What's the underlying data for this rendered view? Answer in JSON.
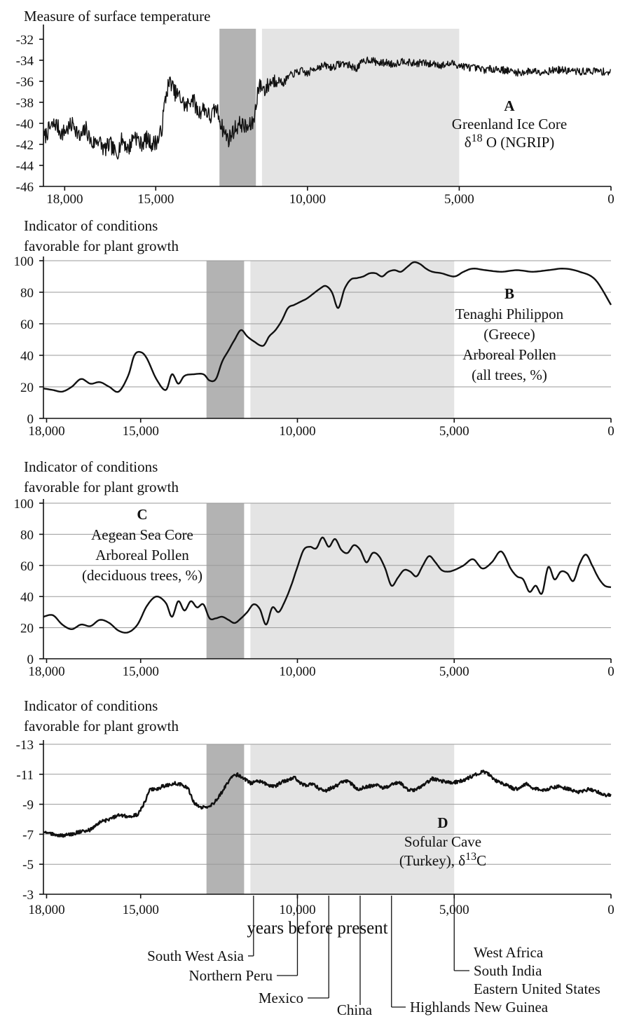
{
  "x_axis_label": "years before present",
  "chart_data": [
    {
      "id": "A",
      "type": "line",
      "ylabel": "Measure of surface temperature",
      "ylim": [
        -46,
        -31
      ],
      "yticks": [
        -46,
        -44,
        -42,
        -40,
        -38,
        -36,
        -34,
        -32
      ],
      "ytick_labels": [
        "-46",
        "-44",
        "-42",
        "-40",
        "-38",
        "-36",
        "-34",
        "-32"
      ],
      "xlim": [
        18700,
        0
      ],
      "xticks": [
        18000,
        15000,
        10000,
        5000,
        0
      ],
      "xtick_labels": [
        "18,000",
        "15,000",
        "10,000",
        "5,000",
        "0"
      ],
      "grid": false,
      "noisy": true,
      "annotation": {
        "letter": "A",
        "lines": [
          "Greenland Ice Core",
          "δ18 O (NGRIP)"
        ],
        "segments": [
          [
            "Greenland Ice Core"
          ],
          [
            "δ",
            "18",
            " O (NGRIP)"
          ]
        ]
      },
      "x": [
        18700,
        18500,
        18300,
        18100,
        17900,
        17700,
        17500,
        17300,
        17100,
        16900,
        16700,
        16500,
        16300,
        16100,
        15900,
        15700,
        15500,
        15300,
        15100,
        14900,
        14800,
        14700,
        14600,
        14500,
        14400,
        14200,
        14000,
        13800,
        13600,
        13400,
        13200,
        13000,
        12900,
        12800,
        12600,
        12400,
        12200,
        12000,
        11800,
        11700,
        11650,
        11600,
        11500,
        11400,
        11200,
        11000,
        10800,
        10600,
        10400,
        10200,
        10000,
        9800,
        9600,
        9400,
        9200,
        9000,
        8800,
        8600,
        8400,
        8200,
        8000,
        7800,
        7600,
        7400,
        7200,
        7000,
        6800,
        6600,
        6400,
        6200,
        6000,
        5800,
        5600,
        5400,
        5200,
        5000,
        4600,
        4200,
        3800,
        3400,
        3000,
        2600,
        2200,
        1800,
        1400,
        1000,
        600,
        200,
        0
      ],
      "y": [
        -41.5,
        -40.5,
        -40.0,
        -41.0,
        -40.5,
        -40.0,
        -41.5,
        -40.5,
        -42.0,
        -41.5,
        -42.5,
        -42.0,
        -43.0,
        -41.5,
        -42.5,
        -41.0,
        -42.0,
        -41.5,
        -42.0,
        -41.5,
        -40.5,
        -38.0,
        -36.5,
        -36.0,
        -37.0,
        -37.5,
        -38.5,
        -37.5,
        -39.0,
        -38.5,
        -39.5,
        -38.5,
        -39.5,
        -40.5,
        -41.5,
        -40.5,
        -40.0,
        -40.5,
        -40.0,
        -38.5,
        -37.0,
        -36.5,
        -36.5,
        -36.8,
        -36.0,
        -35.8,
        -36.2,
        -35.5,
        -35.2,
        -35.0,
        -35.3,
        -34.8,
        -34.6,
        -34.5,
        -34.7,
        -34.4,
        -34.3,
        -34.5,
        -34.8,
        -34.2,
        -33.9,
        -34.1,
        -34.3,
        -34.2,
        -34.4,
        -34.2,
        -34.0,
        -34.3,
        -34.3,
        -34.2,
        -34.4,
        -34.3,
        -34.5,
        -34.4,
        -34.3,
        -34.5,
        -34.7,
        -34.9,
        -34.8,
        -35.0,
        -35.2,
        -35.0,
        -35.1,
        -34.9,
        -35.0,
        -35.1,
        -35.0,
        -35.1,
        -35.2
      ]
    },
    {
      "id": "B",
      "type": "line",
      "ylabel": "Indicator of conditions favorable for plant growth",
      "ylabel_lines": [
        "Indicator of conditions",
        "favorable for plant growth"
      ],
      "ylim": [
        0,
        100
      ],
      "yticks": [
        0,
        20,
        40,
        60,
        80,
        100
      ],
      "ytick_labels": [
        "0",
        "20",
        "40",
        "60",
        "80",
        "100"
      ],
      "xlim": [
        18100,
        0
      ],
      "xticks": [
        18000,
        15000,
        10000,
        5000,
        0
      ],
      "xtick_labels": [
        "18,000",
        "15,000",
        "10,000",
        "5,000",
        "0"
      ],
      "grid": true,
      "noisy": false,
      "annotation": {
        "letter": "B",
        "lines": [
          "Tenaghi Philippon",
          "(Greece)",
          "Arboreal Pollen",
          "(all trees, %)"
        ]
      },
      "x": [
        18100,
        17800,
        17500,
        17200,
        16900,
        16600,
        16300,
        16000,
        15700,
        15400,
        15200,
        15000,
        14800,
        14500,
        14200,
        14000,
        13800,
        13600,
        13300,
        13000,
        12800,
        12600,
        12400,
        12200,
        12000,
        11800,
        11600,
        11400,
        11100,
        10900,
        10700,
        10500,
        10300,
        10100,
        9900,
        9700,
        9500,
        9300,
        9100,
        8900,
        8700,
        8500,
        8300,
        8100,
        7900,
        7700,
        7500,
        7300,
        7100,
        6900,
        6700,
        6500,
        6300,
        6100,
        5900,
        5700,
        5400,
        5000,
        4700,
        4400,
        4000,
        3500,
        3000,
        2500,
        2000,
        1500,
        1000,
        500,
        0
      ],
      "y": [
        19,
        18,
        17,
        20,
        25,
        22,
        23,
        20,
        17,
        27,
        40,
        42,
        38,
        25,
        18,
        28,
        22,
        27,
        28,
        28,
        24,
        25,
        36,
        43,
        50,
        56,
        52,
        49,
        46,
        52,
        56,
        62,
        70,
        72,
        74,
        76,
        79,
        82,
        84,
        80,
        70,
        82,
        88,
        89,
        90,
        92,
        92,
        90,
        93,
        94,
        93,
        96,
        99,
        98,
        95,
        93,
        92,
        90,
        93,
        95,
        94,
        93,
        94,
        93,
        94,
        95,
        93,
        88,
        72
      ]
    },
    {
      "id": "C",
      "type": "line",
      "ylabel": "Indicator of conditions favorable for plant growth",
      "ylabel_lines": [
        "Indicator of conditions",
        "favorable for plant growth"
      ],
      "ylim": [
        0,
        100
      ],
      "yticks": [
        0,
        20,
        40,
        60,
        80,
        100
      ],
      "ytick_labels": [
        "0",
        "20",
        "40",
        "60",
        "80",
        "100"
      ],
      "xlim": [
        18100,
        0
      ],
      "xticks": [
        18000,
        15000,
        10000,
        5000,
        0
      ],
      "xtick_labels": [
        "18,000",
        "15,000",
        "10,000",
        "5,000",
        "0"
      ],
      "grid": true,
      "noisy": false,
      "annotation": {
        "letter": "C",
        "lines": [
          "Aegean Sea Core",
          "Arboreal Pollen",
          "(deciduous trees, %)"
        ]
      },
      "x": [
        18100,
        17800,
        17500,
        17200,
        16900,
        16600,
        16300,
        16000,
        15700,
        15400,
        15100,
        14800,
        14500,
        14200,
        14000,
        13800,
        13600,
        13400,
        13200,
        13000,
        12800,
        12600,
        12400,
        12200,
        12000,
        11800,
        11600,
        11400,
        11200,
        11000,
        10800,
        10600,
        10400,
        10200,
        10000,
        9800,
        9600,
        9400,
        9200,
        9000,
        8800,
        8600,
        8400,
        8200,
        8000,
        7800,
        7600,
        7400,
        7200,
        7000,
        6800,
        6600,
        6400,
        6200,
        6000,
        5800,
        5600,
        5400,
        5200,
        5000,
        4700,
        4400,
        4100,
        3800,
        3500,
        3200,
        3000,
        2800,
        2600,
        2400,
        2200,
        2000,
        1800,
        1600,
        1400,
        1200,
        1000,
        800,
        600,
        400,
        200,
        0
      ],
      "y": [
        27,
        28,
        22,
        19,
        22,
        21,
        25,
        23,
        18,
        17,
        22,
        34,
        40,
        36,
        27,
        37,
        31,
        37,
        33,
        35,
        26,
        26,
        27,
        25,
        23,
        26,
        30,
        35,
        32,
        22,
        33,
        30,
        37,
        47,
        59,
        70,
        72,
        71,
        78,
        72,
        77,
        70,
        68,
        73,
        70,
        62,
        68,
        66,
        58,
        47,
        52,
        57,
        56,
        53,
        60,
        66,
        62,
        57,
        56,
        57,
        60,
        64,
        58,
        62,
        69,
        58,
        53,
        51,
        43,
        47,
        42,
        59,
        51,
        56,
        55,
        50,
        61,
        67,
        60,
        52,
        47,
        46
      ]
    },
    {
      "id": "D",
      "type": "line",
      "ylabel": "Indicator of conditions favorable for plant growth",
      "ylabel_lines": [
        "Indicator of conditions",
        "favorable for plant growth"
      ],
      "ylim": [
        -3,
        -13
      ],
      "yticks": [
        -3,
        -5,
        -7,
        -9,
        -11,
        -13
      ],
      "ytick_labels": [
        "-3",
        "-5",
        "-7",
        "-9",
        "-11",
        "-13"
      ],
      "xlim": [
        18100,
        0
      ],
      "xticks": [
        18000,
        15000,
        10000,
        5000,
        0
      ],
      "xtick_labels": [
        "18,000",
        "15,000",
        "10,000",
        "5,000",
        "0"
      ],
      "grid": true,
      "noisy": true,
      "annotation": {
        "letter": "D",
        "lines": [
          "Sofular Cave",
          "(Turkey), δ13C"
        ],
        "segments": [
          [
            "Sofular Cave"
          ],
          [
            "(Turkey), δ",
            "13",
            "C"
          ]
        ]
      },
      "x": [
        18100,
        17800,
        17500,
        17200,
        16900,
        16600,
        16300,
        16000,
        15700,
        15400,
        15100,
        14900,
        14700,
        14500,
        14300,
        14100,
        13900,
        13700,
        13500,
        13300,
        13100,
        12900,
        12700,
        12500,
        12300,
        12100,
        11900,
        11700,
        11500,
        11300,
        11100,
        10900,
        10700,
        10500,
        10300,
        10100,
        9900,
        9700,
        9500,
        9300,
        9100,
        8900,
        8700,
        8500,
        8300,
        8100,
        7900,
        7700,
        7500,
        7300,
        7100,
        6900,
        6700,
        6500,
        6300,
        6100,
        5900,
        5700,
        5500,
        5300,
        5100,
        4900,
        4700,
        4500,
        4300,
        4100,
        3900,
        3700,
        3500,
        3300,
        3100,
        2900,
        2700,
        2500,
        2300,
        2100,
        1900,
        1700,
        1500,
        1300,
        1100,
        900,
        700,
        500,
        300,
        100,
        0
      ],
      "y": [
        -7.1,
        -7.0,
        -6.9,
        -7.0,
        -7.2,
        -7.3,
        -7.8,
        -8.0,
        -8.3,
        -8.2,
        -8.3,
        -9.0,
        -10.0,
        -10.0,
        -10.2,
        -10.3,
        -10.4,
        -10.3,
        -10.1,
        -9.1,
        -8.8,
        -8.8,
        -9.0,
        -9.5,
        -10.2,
        -10.8,
        -11.0,
        -10.7,
        -10.4,
        -10.5,
        -10.5,
        -10.2,
        -10.2,
        -10.5,
        -10.6,
        -10.8,
        -10.4,
        -10.2,
        -10.4,
        -10.0,
        -9.9,
        -10.1,
        -10.3,
        -10.6,
        -10.4,
        -10.0,
        -10.1,
        -10.2,
        -10.3,
        -10.1,
        -10.2,
        -10.4,
        -10.4,
        -10.0,
        -9.9,
        -10.1,
        -10.4,
        -10.7,
        -10.6,
        -10.5,
        -10.4,
        -10.5,
        -10.6,
        -10.8,
        -11.0,
        -11.2,
        -11.0,
        -10.6,
        -10.4,
        -10.3,
        -10.0,
        -10.1,
        -10.4,
        -10.1,
        -10.0,
        -9.9,
        -10.1,
        -10.2,
        -10.1,
        -10.0,
        -9.8,
        -9.9,
        -10.0,
        -9.9,
        -9.7,
        -9.6,
        -9.6
      ]
    }
  ],
  "shaded_periods": [
    {
      "start": 12900,
      "end": 11700,
      "tone": "dark",
      "color": "#b3b3b3"
    },
    {
      "start": 11500,
      "end": 5000,
      "tone": "light",
      "color": "#e4e4e4"
    }
  ],
  "domestication_markers": [
    {
      "year": 11400,
      "label": "South West Asia",
      "side": "left"
    },
    {
      "year": 10000,
      "label": "Northern Peru",
      "side": "left"
    },
    {
      "year": 9000,
      "label": "Mexico",
      "side": "left"
    },
    {
      "year": 8000,
      "label": "China",
      "side": "none"
    },
    {
      "year": 7000,
      "label": "Highlands New Guinea",
      "side": "right"
    },
    {
      "year": 5000,
      "labels": [
        "West Africa",
        "South India",
        "Eastern United States"
      ],
      "side": "right"
    }
  ]
}
